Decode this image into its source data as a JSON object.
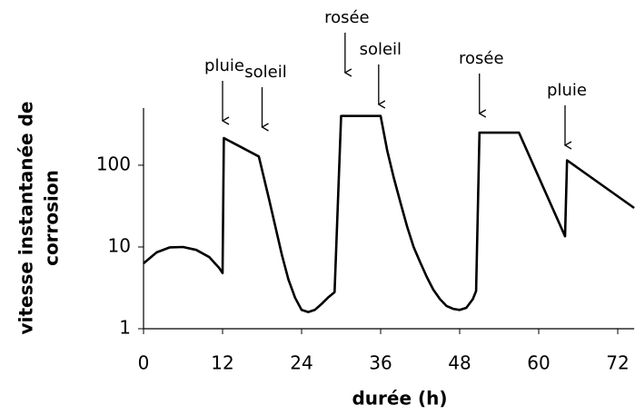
{
  "chart_data": {
    "type": "line",
    "xlabel": "durée (h)",
    "ylabel": [
      "vitesse instantanée de",
      "corrosion"
    ],
    "log_y": true,
    "xlim": [
      0,
      74.5
    ],
    "ylim": [
      1,
      500
    ],
    "xticks": [
      0,
      12,
      24,
      36,
      48,
      60,
      72
    ],
    "yticks": [
      1,
      10,
      100
    ],
    "grid": false,
    "series": [
      {
        "name": null,
        "color": "#000000",
        "x": [
          0,
          2,
          4,
          6,
          8,
          10,
          11.5,
          12,
          12.2,
          17.5,
          19,
          20,
          21,
          22,
          23,
          24,
          25,
          26,
          27,
          28,
          29,
          30,
          36,
          37,
          38,
          39,
          40,
          41,
          42,
          43,
          44,
          45,
          46,
          47,
          48,
          49,
          50,
          50.5,
          51,
          57,
          64,
          64.3,
          74.5
        ],
        "values": [
          6.3,
          8.6,
          9.9,
          10,
          9.2,
          7.5,
          5.5,
          4.8,
          215,
          128,
          40,
          18,
          8,
          4,
          2.4,
          1.7,
          1.6,
          1.7,
          2.0,
          2.4,
          2.8,
          400,
          400,
          150,
          70,
          35,
          18,
          10,
          6.5,
          4.3,
          3.0,
          2.3,
          1.9,
          1.75,
          1.7,
          1.8,
          2.3,
          2.9,
          250,
          250,
          13.5,
          115,
          30
        ]
      }
    ],
    "annotations": [
      {
        "text": "pluie",
        "x": 12
      },
      {
        "text": "soleil",
        "x": 18
      },
      {
        "text": "rosée",
        "x": 30.6
      },
      {
        "text": "soleil",
        "x": 35.7
      },
      {
        "text": "rosée",
        "x": 51
      },
      {
        "text": "pluie",
        "x": 64
      }
    ]
  }
}
